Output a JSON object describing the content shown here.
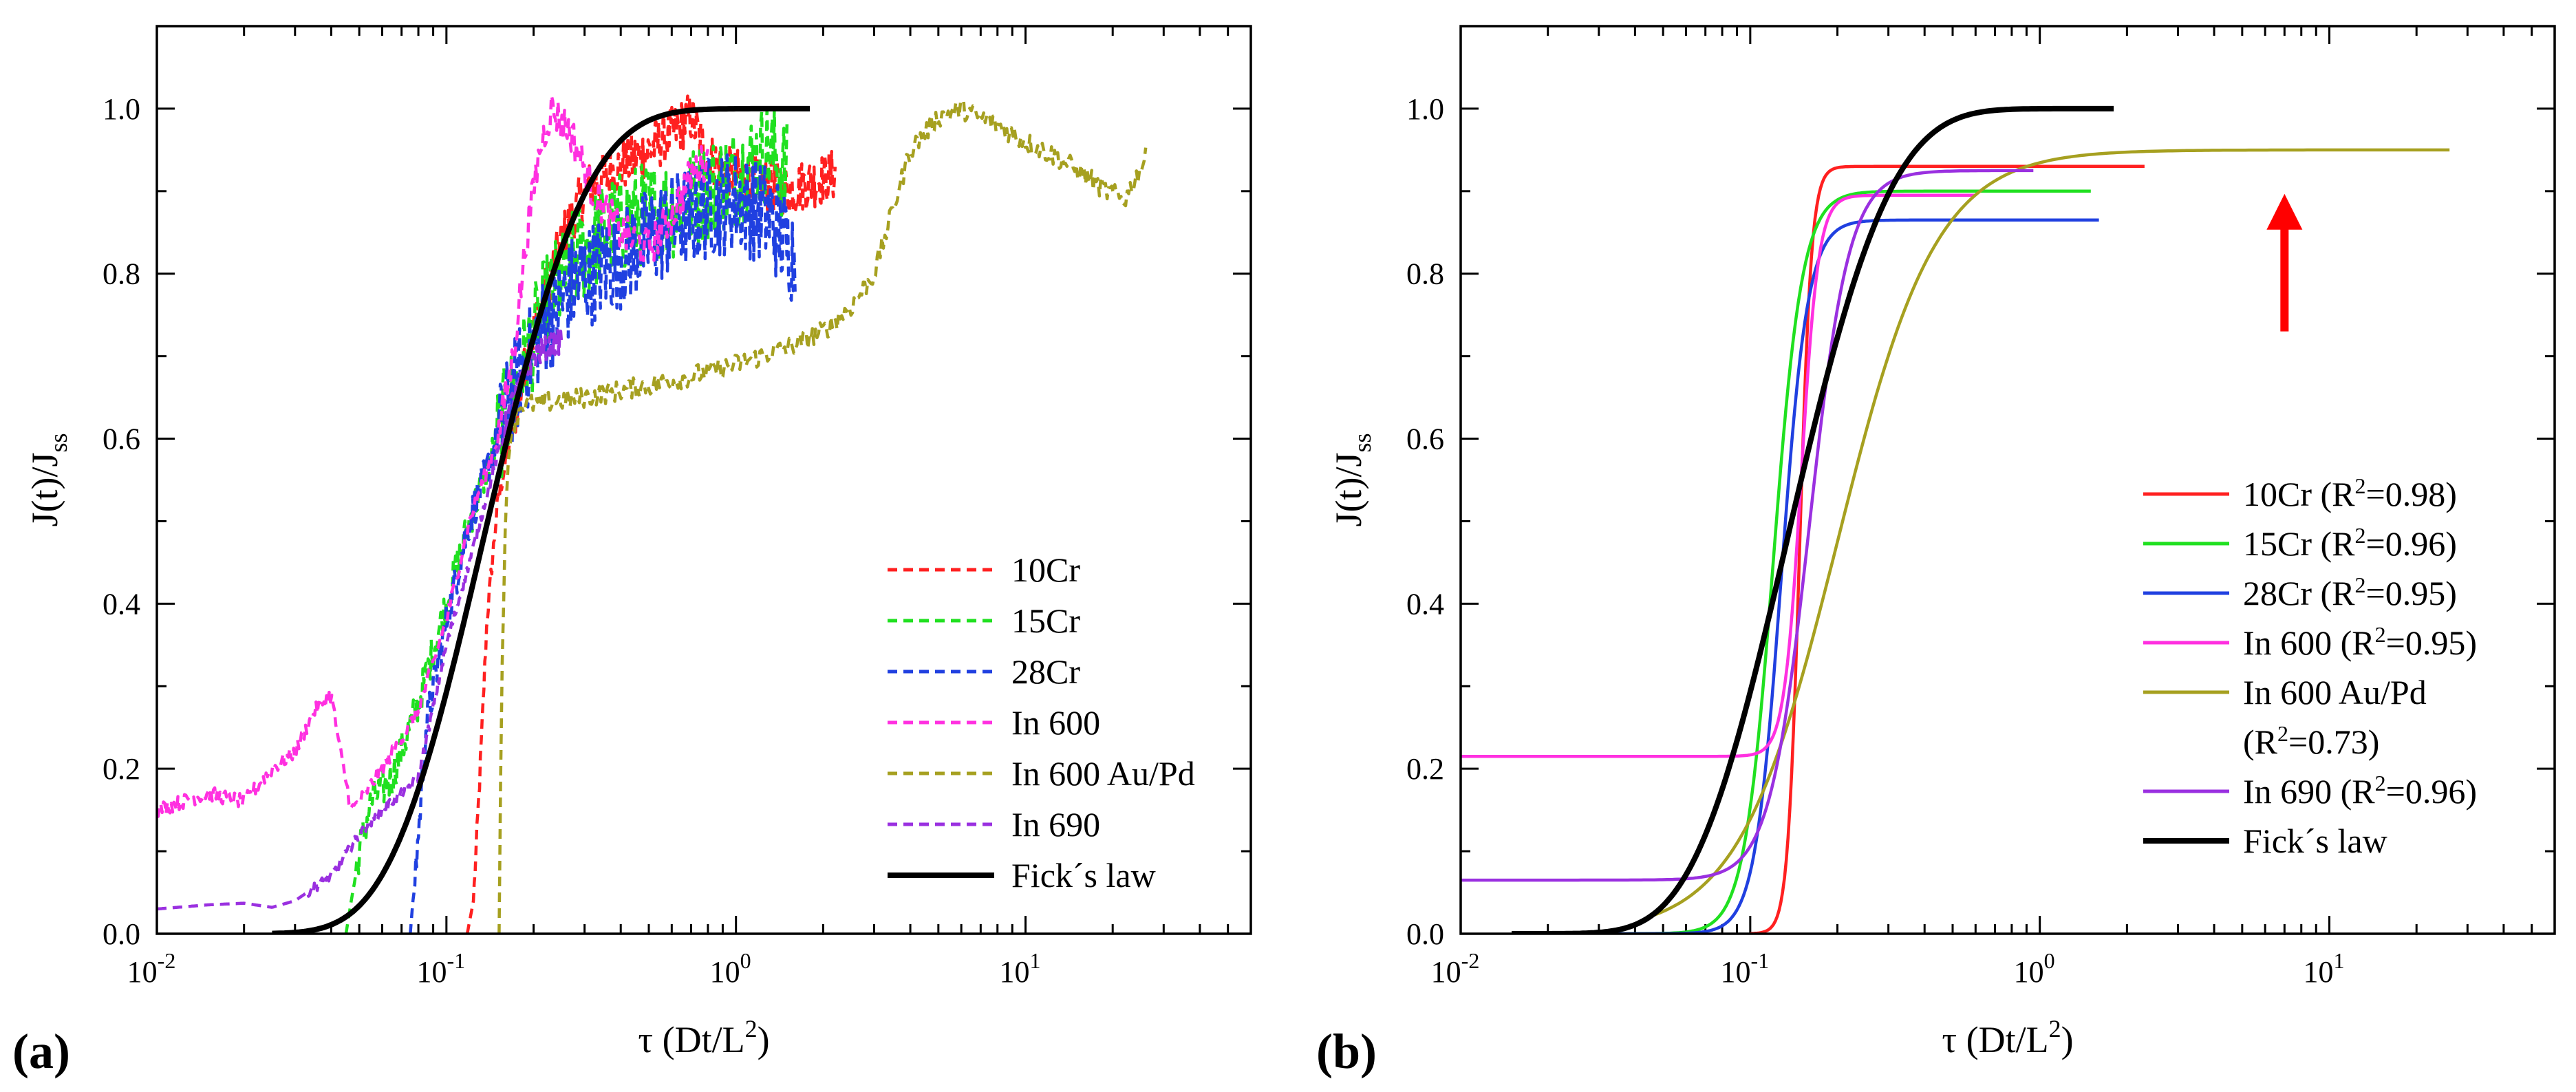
{
  "chart_data": [
    {
      "type": "line",
      "panel": "a",
      "panel_label": "(a)",
      "xscale": "log",
      "xlim": [
        0.01,
        60
      ],
      "ylim": [
        0.0,
        1.1
      ],
      "xlabel": "τ (Dt/L",
      "xlabel_sup": "2",
      "xlabel_tail": ")",
      "ylabel": "J(t)/J",
      "ylabel_sub": "ss",
      "xticks": [
        {
          "v": 0.01,
          "base": "10",
          "exp": "-2"
        },
        {
          "v": 0.1,
          "base": "10",
          "exp": "-1"
        },
        {
          "v": 1,
          "base": "10",
          "exp": "0"
        },
        {
          "v": 10,
          "base": "10",
          "exp": "1"
        }
      ],
      "yticks": [
        "0.0",
        "0.2",
        "0.4",
        "0.6",
        "0.8",
        "1.0"
      ],
      "legend_position": "bottom-right",
      "series": [
        {
          "name": "10Cr",
          "color": "#ff2020",
          "dash": true,
          "points": [
            [
              0.118,
              0
            ],
            [
              0.124,
              0.04
            ],
            [
              0.13,
              0.18
            ],
            [
              0.138,
              0.38
            ],
            [
              0.15,
              0.52
            ],
            [
              0.17,
              0.62
            ],
            [
              0.2,
              0.73
            ],
            [
              0.25,
              0.84
            ],
            [
              0.3,
              0.9
            ],
            [
              0.4,
              0.93
            ],
            [
              0.5,
              0.95
            ],
            [
              0.6,
              0.97
            ],
            [
              0.7,
              0.99
            ],
            [
              0.8,
              0.94
            ],
            [
              0.9,
              0.93
            ],
            [
              1.0,
              0.92
            ],
            [
              1.2,
              0.91
            ],
            [
              1.5,
              0.9
            ],
            [
              1.8,
              0.91
            ],
            [
              2.2,
              0.92
            ]
          ],
          "noise": 0.02
        },
        {
          "name": "15Cr",
          "color": "#20e020",
          "dash": true,
          "points": [
            [
              0.045,
              0
            ],
            [
              0.05,
              0.1
            ],
            [
              0.055,
              0.16
            ],
            [
              0.065,
              0.19
            ],
            [
              0.08,
              0.28
            ],
            [
              0.1,
              0.4
            ],
            [
              0.12,
              0.5
            ],
            [
              0.15,
              0.6
            ],
            [
              0.18,
              0.68
            ],
            [
              0.22,
              0.76
            ],
            [
              0.28,
              0.82
            ],
            [
              0.35,
              0.85
            ],
            [
              0.45,
              0.87
            ],
            [
              0.6,
              0.88
            ],
            [
              0.8,
              0.9
            ],
            [
              1.0,
              0.92
            ],
            [
              1.3,
              0.95
            ],
            [
              1.5,
              0.92
            ]
          ],
          "noise": 0.04
        },
        {
          "name": "28Cr",
          "color": "#2040e0",
          "dash": true,
          "points": [
            [
              0.075,
              0
            ],
            [
              0.08,
              0.12
            ],
            [
              0.085,
              0.25
            ],
            [
              0.1,
              0.38
            ],
            [
              0.12,
              0.5
            ],
            [
              0.15,
              0.6
            ],
            [
              0.18,
              0.68
            ],
            [
              0.22,
              0.74
            ],
            [
              0.28,
              0.79
            ],
            [
              0.35,
              0.81
            ],
            [
              0.45,
              0.83
            ],
            [
              0.6,
              0.86
            ],
            [
              0.8,
              0.88
            ],
            [
              1.0,
              0.89
            ],
            [
              1.3,
              0.87
            ],
            [
              1.6,
              0.82
            ]
          ],
          "noise": 0.04
        },
        {
          "name": "In 600",
          "color": "#ff30e0",
          "dash": true,
          "points": [
            [
              0.01,
              0.15
            ],
            [
              0.015,
              0.17
            ],
            [
              0.02,
              0.16
            ],
            [
              0.025,
              0.2
            ],
            [
              0.03,
              0.22
            ],
            [
              0.035,
              0.27
            ],
            [
              0.04,
              0.29
            ],
            [
              0.043,
              0.22
            ],
            [
              0.047,
              0.15
            ],
            [
              0.05,
              0.16
            ],
            [
              0.06,
              0.2
            ],
            [
              0.08,
              0.27
            ],
            [
              0.1,
              0.38
            ],
            [
              0.12,
              0.5
            ],
            [
              0.15,
              0.6
            ],
            [
              0.17,
              0.7
            ],
            [
              0.19,
              0.85
            ],
            [
              0.21,
              0.95
            ],
            [
              0.23,
              1.0
            ],
            [
              0.27,
              0.97
            ],
            [
              0.32,
              0.9
            ],
            [
              0.4,
              0.85
            ],
            [
              0.5,
              0.83
            ],
            [
              0.6,
              0.87
            ],
            [
              0.7,
              0.92
            ],
            [
              0.8,
              0.94
            ]
          ],
          "noise": 0.015
        },
        {
          "name": "In 600 Au/Pd",
          "color": "#a6a020",
          "dash": true,
          "points": [
            [
              0.152,
              0
            ],
            [
              0.155,
              0.3
            ],
            [
              0.16,
              0.5
            ],
            [
              0.165,
              0.6
            ],
            [
              0.18,
              0.64
            ],
            [
              0.3,
              0.65
            ],
            [
              0.6,
              0.67
            ],
            [
              1.0,
              0.69
            ],
            [
              1.5,
              0.71
            ],
            [
              2.0,
              0.73
            ],
            [
              2.5,
              0.76
            ],
            [
              3.0,
              0.8
            ],
            [
              3.5,
              0.88
            ],
            [
              4.0,
              0.95
            ],
            [
              5.0,
              0.99
            ],
            [
              6.0,
              1.0
            ],
            [
              8.0,
              0.98
            ],
            [
              10.0,
              0.96
            ],
            [
              13.0,
              0.94
            ],
            [
              16.0,
              0.92
            ],
            [
              19.0,
              0.9
            ],
            [
              22.0,
              0.89
            ],
            [
              26.0,
              0.94
            ]
          ],
          "noise": 0.008
        },
        {
          "name": "In 690",
          "color": "#9a30e0",
          "dash": true,
          "points": [
            [
              0.01,
              0.03
            ],
            [
              0.015,
              0.035
            ],
            [
              0.02,
              0.037
            ],
            [
              0.025,
              0.032
            ],
            [
              0.03,
              0.04
            ],
            [
              0.04,
              0.07
            ],
            [
              0.05,
              0.12
            ],
            [
              0.06,
              0.15
            ],
            [
              0.07,
              0.17
            ],
            [
              0.08,
              0.19
            ],
            [
              0.1,
              0.35
            ],
            [
              0.12,
              0.45
            ],
            [
              0.15,
              0.58
            ],
            [
              0.17,
              0.65
            ],
            [
              0.2,
              0.7
            ],
            [
              0.25,
              0.72
            ]
          ],
          "noise": 0.01
        },
        {
          "name": "Fick´s law",
          "color": "#000000",
          "dash": false,
          "fick": true,
          "xrange": [
            0.025,
            1.8
          ]
        }
      ]
    },
    {
      "type": "line",
      "panel": "b",
      "panel_label": "(b)",
      "xscale": "log",
      "xlim": [
        0.01,
        60
      ],
      "ylim": [
        0.0,
        1.1
      ],
      "xlabel": "τ (Dt/L",
      "xlabel_sup": "2",
      "xlabel_tail": ")",
      "ylabel": "J(t)/J",
      "ylabel_sub": "ss",
      "xticks": [
        {
          "v": 0.01,
          "base": "10",
          "exp": "-2"
        },
        {
          "v": 0.1,
          "base": "10",
          "exp": "-1"
        },
        {
          "v": 1,
          "base": "10",
          "exp": "0"
        },
        {
          "v": 10,
          "base": "10",
          "exp": "1"
        }
      ],
      "yticks": [
        "0.0",
        "0.2",
        "0.4",
        "0.6",
        "0.8",
        "1.0"
      ],
      "legend_position": "right",
      "annotation": {
        "type": "arrow",
        "color": "#ff0000",
        "x": 7.0,
        "y_from": 0.73,
        "y_to": 0.89
      },
      "series": [
        {
          "name": "10Cr",
          "r2": "(R",
          "r2_sup": "2",
          "r2_val": "=0.98)",
          "color": "#ff2020",
          "sig": {
            "base": 0,
            "top": 0.93,
            "x0": 0.148,
            "w": 0.09,
            "start": 0.1,
            "end": 2.3
          }
        },
        {
          "name": "15Cr",
          "r2": "(R",
          "r2_sup": "2",
          "r2_val": "=0.96)",
          "color": "#20e020",
          "sig": {
            "base": 0,
            "top": 0.9,
            "x0": 0.12,
            "w": 0.22,
            "start": 0.02,
            "end": 1.5
          }
        },
        {
          "name": "28Cr",
          "r2": "(R",
          "r2_sup": "2",
          "r2_val": "=0.95)",
          "color": "#2040e0",
          "sig": {
            "base": 0,
            "top": 0.865,
            "x0": 0.128,
            "w": 0.2,
            "start": 0.035,
            "end": 1.6
          }
        },
        {
          "name": "In 600",
          "r2": "(R",
          "r2_sup": "2",
          "r2_val": "=0.95)",
          "color": "#ff30e0",
          "sig": {
            "base": 0.215,
            "top": 0.895,
            "x0": 0.15,
            "w": 0.13,
            "start": 0.01,
            "end": 0.6
          }
        },
        {
          "name": "In 600 Au/Pd",
          "r2": "(R",
          "r2_sup": "2",
          "r2_val": "=0.73)",
          "r2_newline": true,
          "color": "#a6a020",
          "sig": {
            "base": 0,
            "top": 0.95,
            "x0": 0.2,
            "w": 0.75,
            "start": 0.045,
            "end": 26
          }
        },
        {
          "name": "In 690",
          "r2": "(R",
          "r2_sup": "2",
          "r2_val": "=0.96)",
          "color": "#9a30e0",
          "sig": {
            "base": 0.065,
            "top": 0.925,
            "x0": 0.16,
            "w": 0.3,
            "start": 0.01,
            "end": 0.95
          }
        },
        {
          "name": "Fick´s law",
          "color": "#000000",
          "fick": true,
          "xrange": [
            0.015,
            1.8
          ]
        }
      ]
    }
  ]
}
